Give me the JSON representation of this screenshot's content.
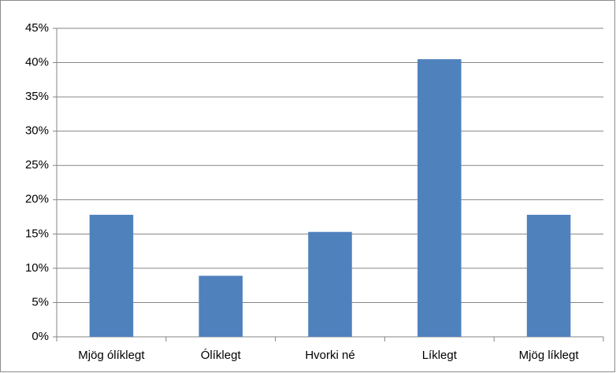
{
  "chart_data": {
    "type": "bar",
    "categories": [
      "Mjög ólíklegt",
      "Ólíklegt",
      "Hvorki né",
      "Líklegt",
      "Mjög líklegt"
    ],
    "values": [
      17.8,
      8.9,
      15.3,
      40.5,
      17.8
    ],
    "color": "#4f81bd",
    "ylim": [
      0,
      45
    ],
    "yticks": [
      {
        "value": 0,
        "label": "0%"
      },
      {
        "value": 5,
        "label": "5%"
      },
      {
        "value": 10,
        "label": "10%"
      },
      {
        "value": 15,
        "label": "15%"
      },
      {
        "value": 20,
        "label": "20%"
      },
      {
        "value": 25,
        "label": "25%"
      },
      {
        "value": 30,
        "label": "30%"
      },
      {
        "value": 35,
        "label": "35%"
      },
      {
        "value": 40,
        "label": "40%"
      },
      {
        "value": 45,
        "label": "45%"
      }
    ],
    "grid": true
  }
}
